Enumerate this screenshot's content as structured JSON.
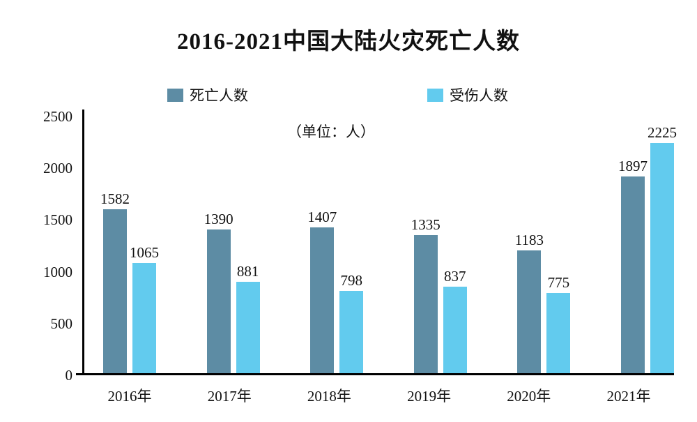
{
  "title": "2016-2021中国大陆火灾死亡人数",
  "unit_note": "（单位：人）",
  "colors": {
    "death_series": "#5d8ca4",
    "injury_series": "#62cbee",
    "axis": "#000000",
    "text": "#111111"
  },
  "chart_data": {
    "type": "bar",
    "title": "2016-2021中国大陆火灾死亡人数",
    "unit_annotation": "（单位：人）",
    "categories": [
      "2016年",
      "2017年",
      "2018年",
      "2019年",
      "2020年",
      "2021年"
    ],
    "series": [
      {
        "name": "死亡人数",
        "color": "#5d8ca4",
        "values": [
          1582,
          1390,
          1407,
          1335,
          1183,
          1897
        ]
      },
      {
        "name": "受伤人数",
        "color": "#62cbee",
        "values": [
          1065,
          881,
          798,
          837,
          775,
          2225
        ]
      }
    ],
    "xlabel": "",
    "ylabel": "",
    "ylim": [
      0,
      2500
    ],
    "yticks": [
      0,
      500,
      1000,
      1500,
      2000,
      2500
    ],
    "grid": false,
    "legend_position": "top",
    "value_labels": true
  }
}
